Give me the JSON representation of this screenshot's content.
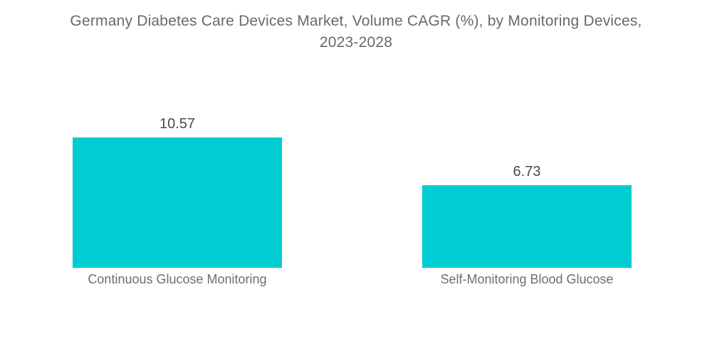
{
  "chart_data": {
    "type": "bar",
    "title": "Germany Diabetes Care Devices Market, Volume CAGR (%), by Monitoring Devices, 2023-2028",
    "title_lines": [
      "Germany Diabetes Care Devices Market, Volume CAGR (%), by Monitoring Devices,",
      "2023-2028"
    ],
    "categories": [
      "Continuous Glucose Monitoring",
      "Self-Monitoring Blood Glucose"
    ],
    "values": [
      10.57,
      6.73
    ],
    "xlabel": "",
    "ylabel": "",
    "ylim": [
      0,
      12
    ],
    "grid": false,
    "legend": false,
    "bar_color": "#00CDD2",
    "title_color": "#67696D",
    "value_label_color": "#48494C",
    "category_label_color": "#6D6E71",
    "background_color": "#FFFFFF"
  }
}
